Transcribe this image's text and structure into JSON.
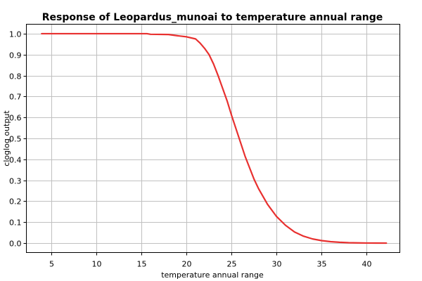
{
  "chart_data": {
    "type": "line",
    "title": "Response of Leopardus_munoai to temperature annual range",
    "xlabel": "temperature annual range",
    "ylabel": "cloglog output",
    "xlim": [
      2.2,
      43.7
    ],
    "ylim": [
      -0.045,
      1.045
    ],
    "xticks": [
      5,
      10,
      15,
      20,
      25,
      30,
      35,
      40
    ],
    "yticks": [
      0.0,
      0.1,
      0.2,
      0.3,
      0.4,
      0.5,
      0.6,
      0.7,
      0.8,
      0.9,
      1.0
    ],
    "xtick_labels": [
      "5",
      "10",
      "15",
      "20",
      "25",
      "30",
      "35",
      "40"
    ],
    "ytick_labels": [
      "0.0",
      "0.1",
      "0.2",
      "0.3",
      "0.4",
      "0.5",
      "0.6",
      "0.7",
      "0.8",
      "0.9",
      "1.0"
    ],
    "grid": true,
    "series": [
      {
        "color": "#e8302f",
        "x": [
          3.9,
          8,
          12,
          15.6,
          16,
          18,
          19,
          20,
          21,
          21.5,
          22,
          22.5,
          23,
          23.5,
          24,
          24.5,
          25,
          25.5,
          26,
          26.5,
          27,
          27.5,
          28,
          29,
          30,
          31,
          32,
          33,
          34,
          35,
          36,
          37,
          38,
          39,
          40,
          41,
          42.2
        ],
        "y": [
          1.0,
          1.0,
          1.0,
          1.0,
          0.997,
          0.996,
          0.99,
          0.985,
          0.975,
          0.955,
          0.93,
          0.9,
          0.855,
          0.8,
          0.74,
          0.68,
          0.61,
          0.545,
          0.48,
          0.415,
          0.36,
          0.305,
          0.26,
          0.185,
          0.127,
          0.085,
          0.053,
          0.033,
          0.02,
          0.012,
          0.007,
          0.004,
          0.002,
          0.001,
          0.0005,
          0.0002,
          0.0
        ]
      }
    ]
  }
}
